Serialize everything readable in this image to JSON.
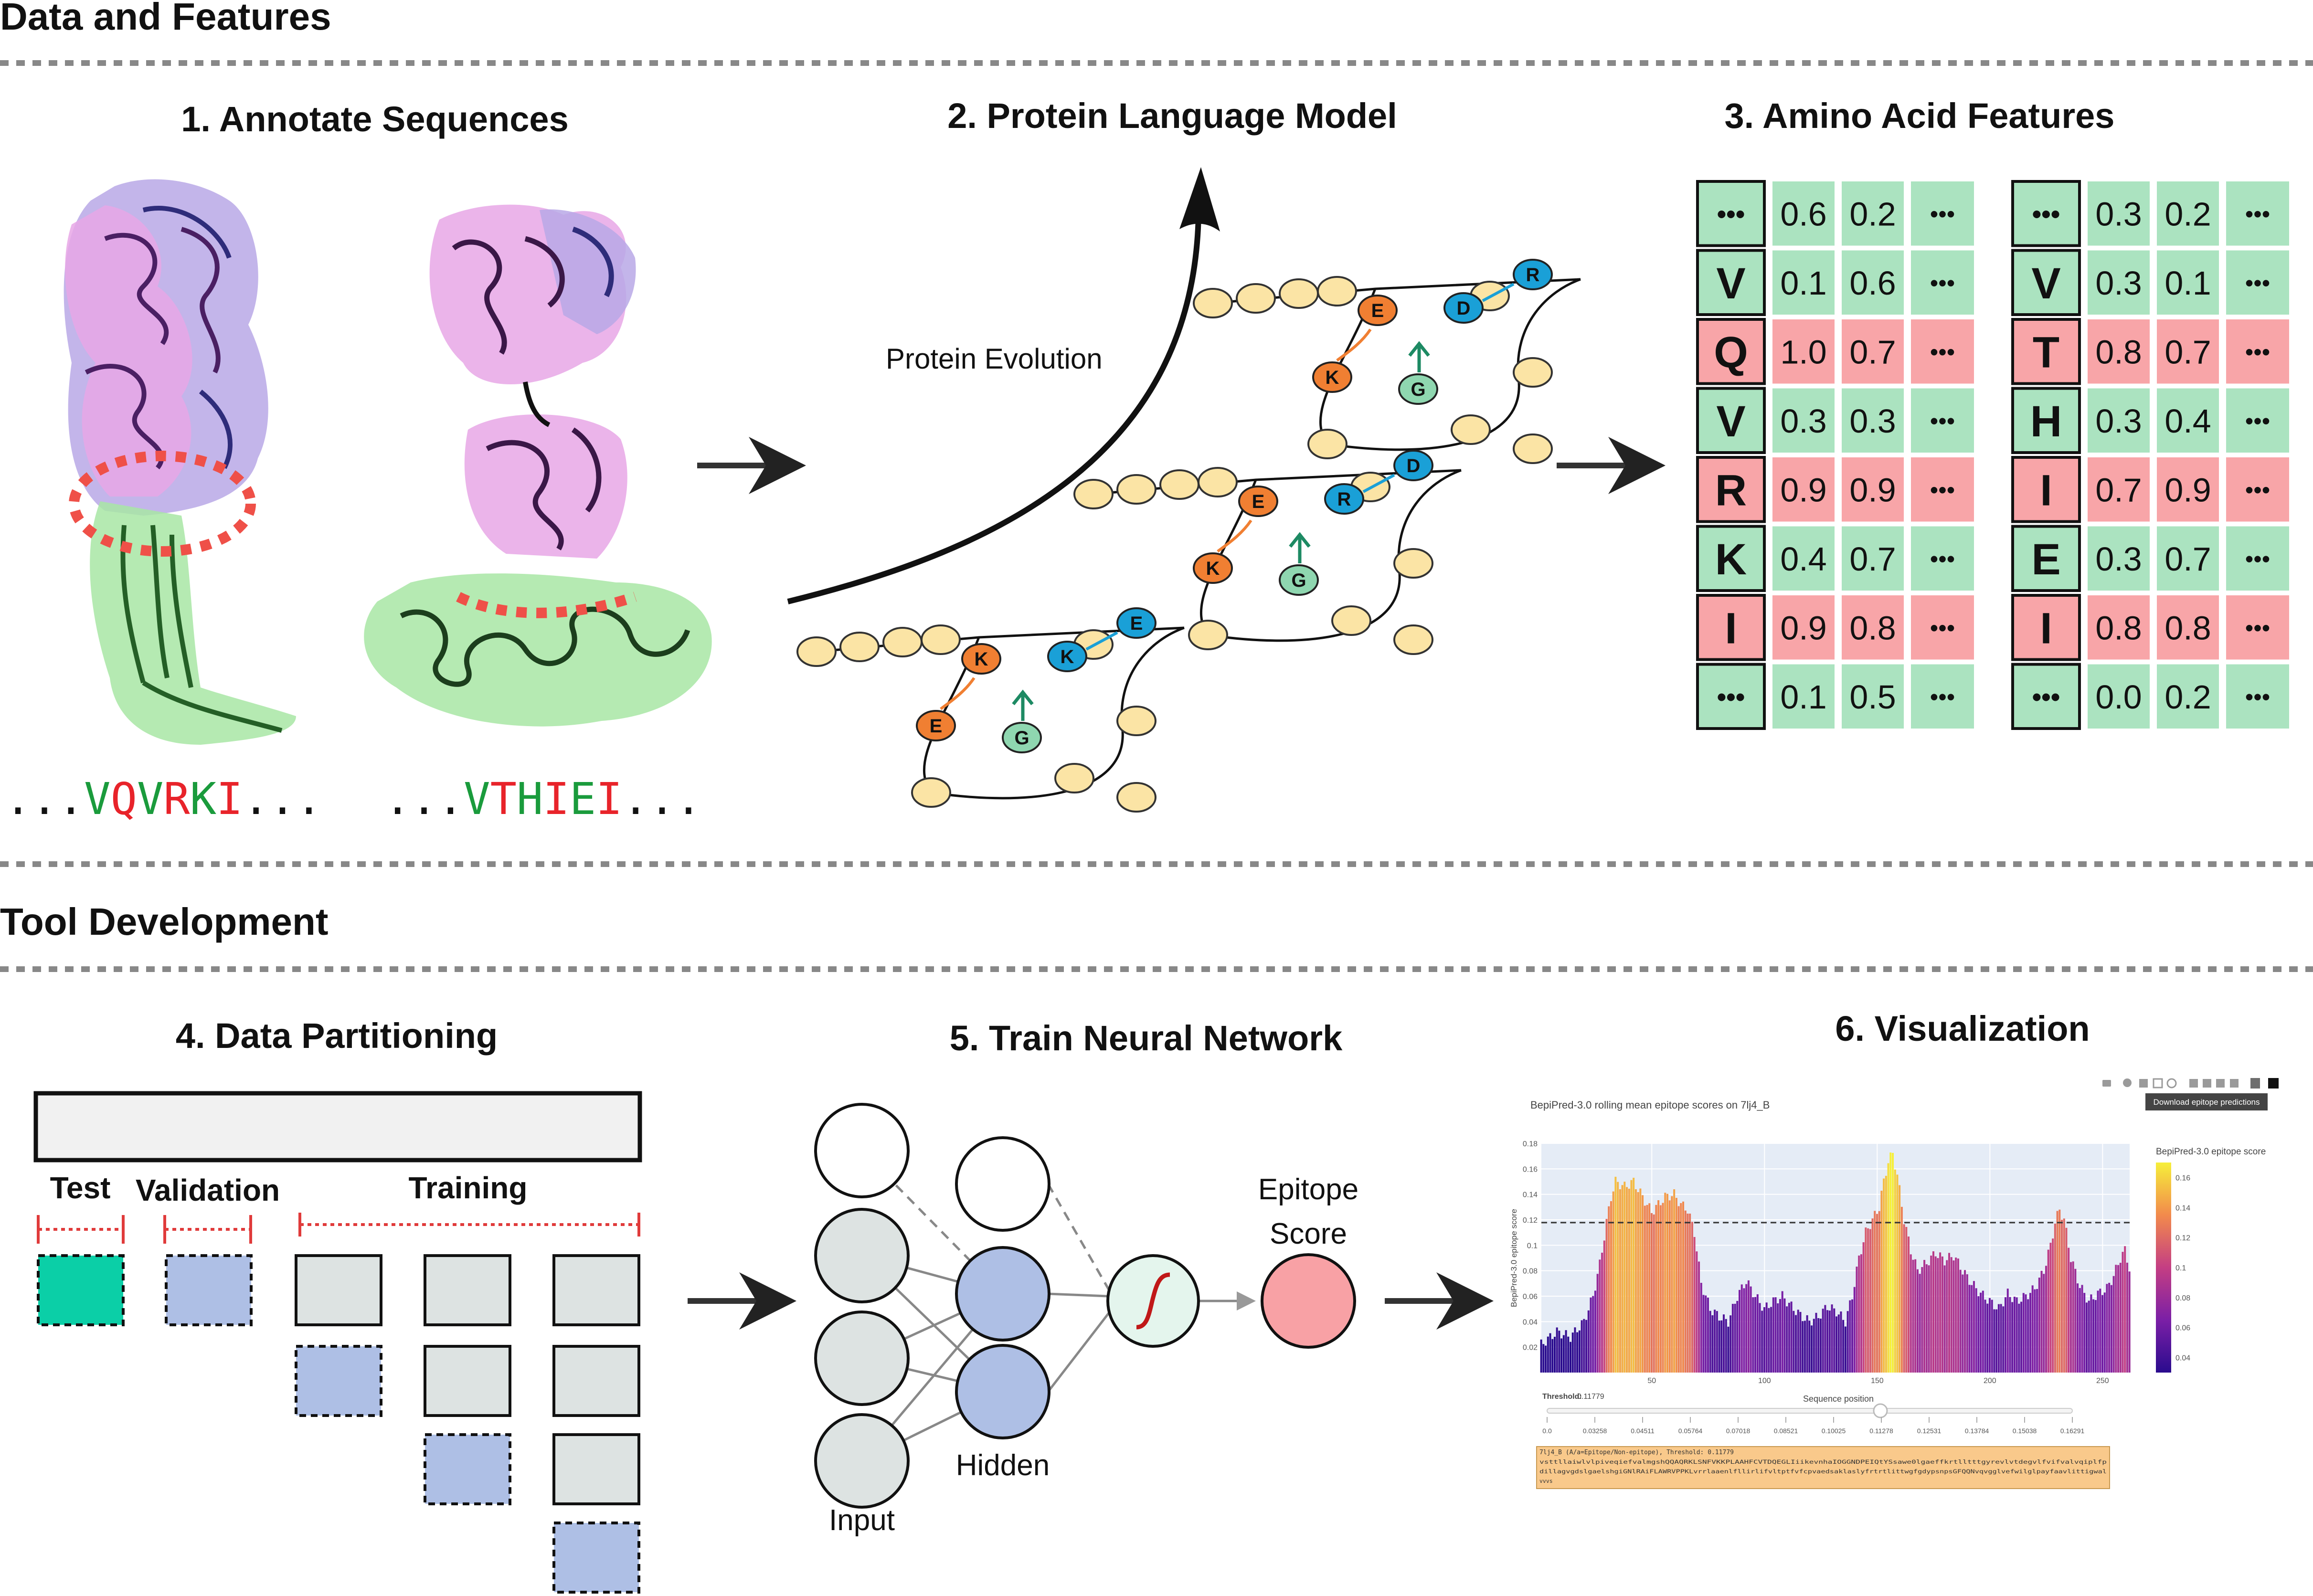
{
  "section_top": {
    "title": "Data and Features"
  },
  "section_bottom": {
    "title": "Tool Development"
  },
  "panel1": {
    "title": "1. Annotate Sequences",
    "seq1": {
      "prefix": "...",
      "letters": [
        "V",
        "Q",
        "V",
        "R",
        "K",
        "I"
      ],
      "suffix": "..."
    },
    "seq2": {
      "prefix": "...",
      "letters": [
        "V",
        "T",
        "H",
        "I",
        "E",
        "I"
      ],
      "suffix": "..."
    }
  },
  "panel2": {
    "title": "2. Protein Language Model",
    "evolution_label": "Protein Evolution",
    "models": [
      {
        "orange_top": "E",
        "orange_bottom": "K",
        "green": "G",
        "blue_a": "D",
        "blue_b": "R"
      },
      {
        "orange_top": "E",
        "orange_bottom": "K",
        "green": "G",
        "blue_a": "R",
        "blue_b": "D"
      },
      {
        "orange_top": "K",
        "orange_bottom": "E",
        "green": "G",
        "blue_a": "K",
        "blue_b": "E"
      }
    ]
  },
  "panel3": {
    "title": "3. Amino Acid Features",
    "tables": [
      {
        "rows": [
          {
            "aa": "•••",
            "v1": "0.6",
            "v2": "0.2",
            "more": "•••",
            "status": "non"
          },
          {
            "aa": "V",
            "v1": "0.1",
            "v2": "0.6",
            "more": "•••",
            "status": "non"
          },
          {
            "aa": "Q",
            "v1": "1.0",
            "v2": "0.7",
            "more": "•••",
            "status": "epi"
          },
          {
            "aa": "V",
            "v1": "0.3",
            "v2": "0.3",
            "more": "•••",
            "status": "non"
          },
          {
            "aa": "R",
            "v1": "0.9",
            "v2": "0.9",
            "more": "•••",
            "status": "epi"
          },
          {
            "aa": "K",
            "v1": "0.4",
            "v2": "0.7",
            "more": "•••",
            "status": "non"
          },
          {
            "aa": "I",
            "v1": "0.9",
            "v2": "0.8",
            "more": "•••",
            "status": "epi"
          },
          {
            "aa": "•••",
            "v1": "0.1",
            "v2": "0.5",
            "more": "•••",
            "status": "non"
          }
        ]
      },
      {
        "rows": [
          {
            "aa": "•••",
            "v1": "0.3",
            "v2": "0.2",
            "more": "•••",
            "status": "non"
          },
          {
            "aa": "V",
            "v1": "0.3",
            "v2": "0.1",
            "more": "•••",
            "status": "non"
          },
          {
            "aa": "T",
            "v1": "0.8",
            "v2": "0.7",
            "more": "•••",
            "status": "epi"
          },
          {
            "aa": "H",
            "v1": "0.3",
            "v2": "0.4",
            "more": "•••",
            "status": "non"
          },
          {
            "aa": "I",
            "v1": "0.7",
            "v2": "0.9",
            "more": "•••",
            "status": "epi"
          },
          {
            "aa": "E",
            "v1": "0.3",
            "v2": "0.7",
            "more": "•••",
            "status": "non"
          },
          {
            "aa": "I",
            "v1": "0.8",
            "v2": "0.8",
            "more": "•••",
            "status": "epi"
          },
          {
            "aa": "•••",
            "v1": "0.0",
            "v2": "0.2",
            "more": "•••",
            "status": "non"
          }
        ]
      }
    ]
  },
  "panel4": {
    "title": "4. Data Partitioning",
    "label_test": "Test",
    "label_validation": "Validation",
    "label_training": "Training"
  },
  "panel5": {
    "title": "5. Train Neural Network",
    "label_input": "Input",
    "label_hidden": "Hidden",
    "output_label_line1": "Epitope",
    "output_label_line2": "Score"
  },
  "panel6": {
    "title": "6. Visualization",
    "tooltip": "Download epitope predictions",
    "threshold_label": "Threshold:",
    "threshold_value": "0.11779",
    "slider_title": "Sequence position",
    "slider_ticks": [
      "0.0",
      "0.03258",
      "0.04511",
      "0.05764",
      "0.07018",
      "0.08521",
      "0.10025",
      "0.11278",
      "0.12531",
      "0.13784",
      "0.15038",
      "0.16291"
    ],
    "sequence_header": "7lj4_B (A/a=Epitope/Non-epitope), Threshold: 0.11779",
    "sequence_lines": [
      "vsttllaiwlvlpiveqiefvalmgshQQAQRKLSNFVKKPLAAHFCVTDQEGLIiikevnhaIOGGNDPEIQtYSsawe0lgaeffkrtlltttgyrevlvtdegvlfvifvalvqiplfp",
      "dillagvgdslgaelshgiGNlRAiFLAWRVPPKLvrrlaaenlfllirlifvltptfvfcpvaedsaklaslyfrtrtlittwgfgdypsnpsGFQQNvqvgglvefwilglpayfaavlittigwal",
      "vvvs"
    ],
    "chart_data": {
      "type": "bar",
      "title": "BepiPred-3.0 rolling mean epitope scores on 7lj4_B",
      "xlabel": "",
      "ylabel": "BepiPred-3.0 epitope score",
      "xlim": [
        1,
        262
      ],
      "ylim": [
        0,
        0.18
      ],
      "x_ticks": [
        50,
        100,
        150,
        200,
        250
      ],
      "y_ticks": [
        0.02,
        0.04,
        0.06,
        0.08,
        0.1,
        0.12,
        0.14,
        0.16,
        0.18
      ],
      "threshold": 0.11779,
      "colorbar": {
        "title": "BepiPred-3.0 epitope score",
        "min": 0.03,
        "max": 0.17,
        "ticks": [
          0.04,
          0.06,
          0.08,
          0.1,
          0.12,
          0.14,
          0.16
        ]
      },
      "profile_points": [
        [
          1,
          0.022
        ],
        [
          8,
          0.032
        ],
        [
          14,
          0.028
        ],
        [
          20,
          0.04
        ],
        [
          24,
          0.06
        ],
        [
          27,
          0.085
        ],
        [
          30,
          0.118
        ],
        [
          32,
          0.138
        ],
        [
          34,
          0.15
        ],
        [
          38,
          0.146
        ],
        [
          42,
          0.15
        ],
        [
          46,
          0.138
        ],
        [
          50,
          0.126
        ],
        [
          53,
          0.132
        ],
        [
          56,
          0.138
        ],
        [
          60,
          0.14
        ],
        [
          63,
          0.132
        ],
        [
          66,
          0.128
        ],
        [
          69,
          0.11
        ],
        [
          72,
          0.07
        ],
        [
          76,
          0.05
        ],
        [
          80,
          0.044
        ],
        [
          84,
          0.04
        ],
        [
          88,
          0.06
        ],
        [
          92,
          0.072
        ],
        [
          96,
          0.06
        ],
        [
          100,
          0.05
        ],
        [
          104,
          0.056
        ],
        [
          108,
          0.06
        ],
        [
          112,
          0.052
        ],
        [
          116,
          0.045
        ],
        [
          120,
          0.04
        ],
        [
          124,
          0.044
        ],
        [
          128,
          0.052
        ],
        [
          132,
          0.048
        ],
        [
          136,
          0.04
        ],
        [
          139,
          0.06
        ],
        [
          142,
          0.09
        ],
        [
          145,
          0.11
        ],
        [
          148,
          0.12
        ],
        [
          151,
          0.13
        ],
        [
          153,
          0.15
        ],
        [
          155,
          0.166
        ],
        [
          157,
          0.172
        ],
        [
          159,
          0.155
        ],
        [
          162,
          0.12
        ],
        [
          165,
          0.096
        ],
        [
          168,
          0.08
        ],
        [
          172,
          0.086
        ],
        [
          176,
          0.094
        ],
        [
          180,
          0.088
        ],
        [
          184,
          0.092
        ],
        [
          188,
          0.08
        ],
        [
          192,
          0.07
        ],
        [
          196,
          0.062
        ],
        [
          200,
          0.056
        ],
        [
          204,
          0.05
        ],
        [
          208,
          0.062
        ],
        [
          212,
          0.056
        ],
        [
          216,
          0.06
        ],
        [
          220,
          0.066
        ],
        [
          224,
          0.08
        ],
        [
          227,
          0.1
        ],
        [
          229,
          0.118
        ],
        [
          231,
          0.128
        ],
        [
          233,
          0.12
        ],
        [
          236,
          0.09
        ],
        [
          240,
          0.068
        ],
        [
          244,
          0.056
        ],
        [
          248,
          0.062
        ],
        [
          252,
          0.066
        ],
        [
          255,
          0.076
        ],
        [
          258,
          0.09
        ],
        [
          260,
          0.096
        ],
        [
          262,
          0.082
        ]
      ]
    }
  },
  "colors": {
    "epitope_red": "#e8232a",
    "nonepitope_green": "#1a9b3c",
    "cell_green": "#abe3c0",
    "cell_red": "#f8a5a8",
    "node_orange": "#f07f32",
    "node_blue": "#1aa0d7",
    "node_green": "#8fd7b0",
    "node_yellow": "#fbe4a5",
    "nn_gray": "#dde3e2",
    "nn_blue": "#aebfe5",
    "test_teal": "#0bcfa7",
    "output_pink": "#f8a1a5"
  }
}
